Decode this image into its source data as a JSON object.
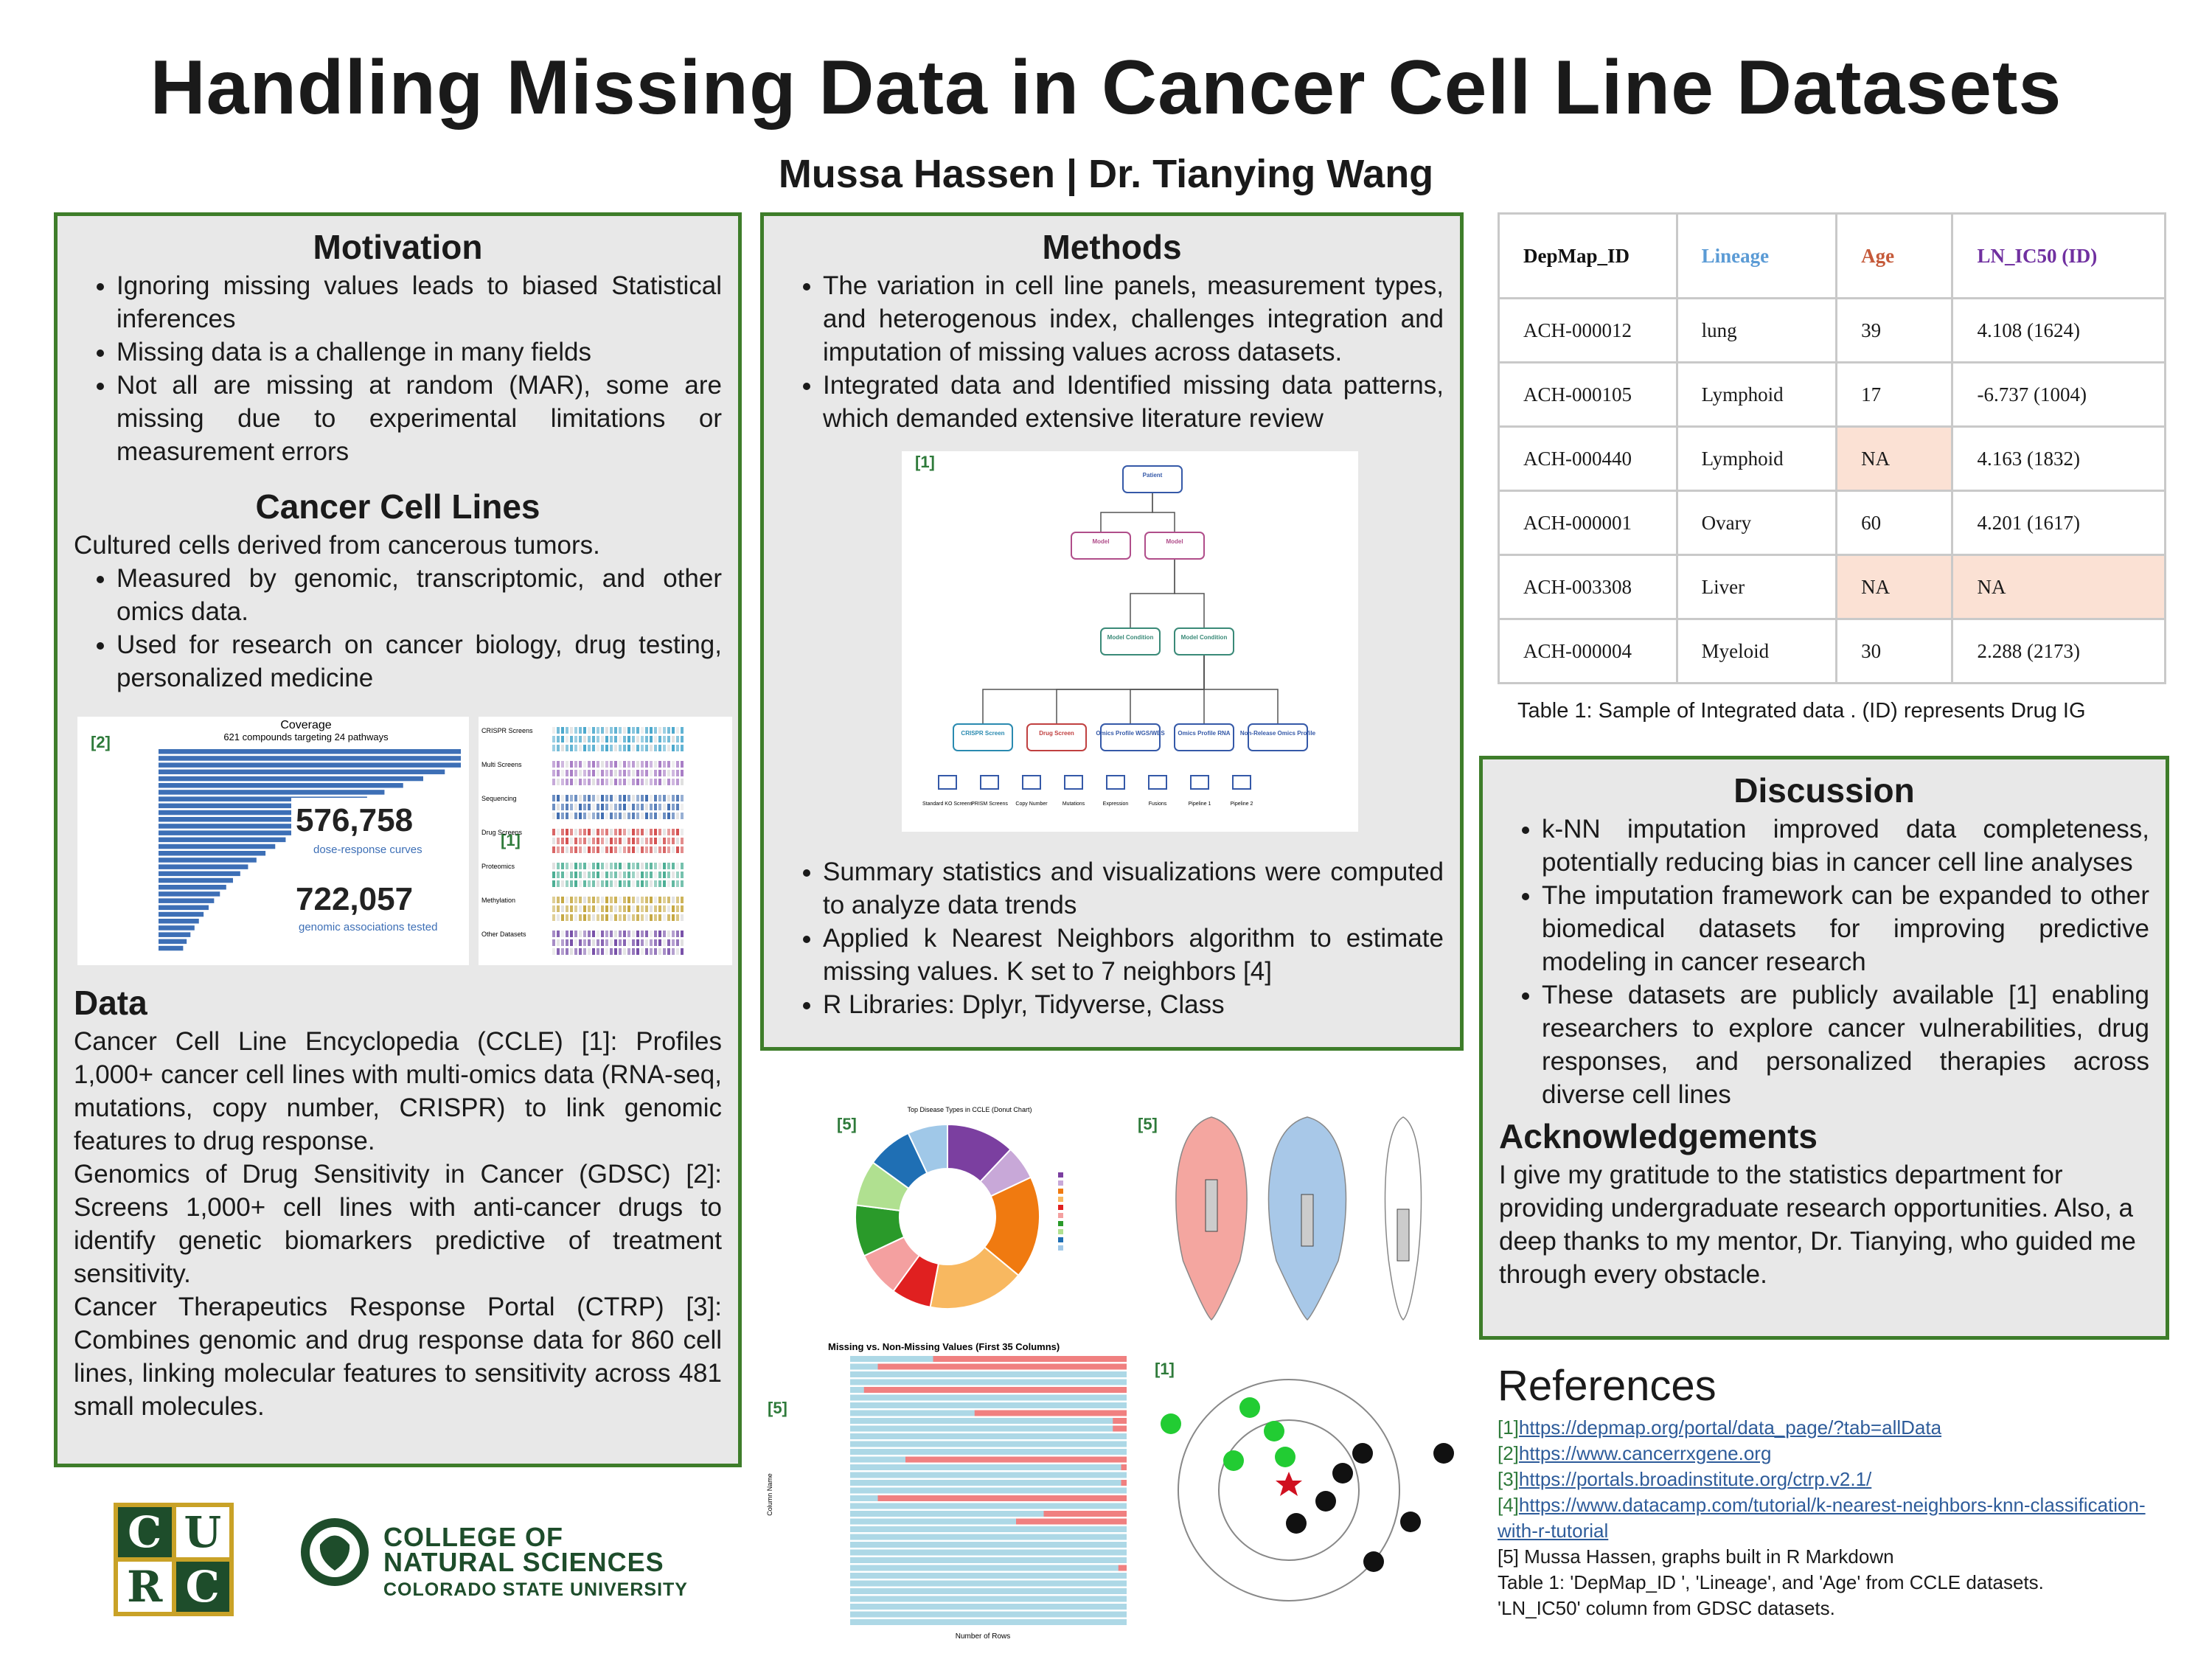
{
  "header": {
    "title": "Handling Missing Data in Cancer Cell Line Datasets",
    "authors": "Mussa Hassen | Dr. Tianying Wang"
  },
  "motivation": {
    "heading": "Motivation",
    "bullets": [
      "Ignoring missing values leads to biased Statistical inferences",
      "Missing data is a challenge in many fields",
      "Not all are missing at random (MAR), some are missing due to experimental limitations or measurement errors"
    ]
  },
  "cancer_cell_lines": {
    "heading": "Cancer Cell Lines",
    "intro": "Cultured cells derived from cancerous tumors.",
    "bullets": [
      "Measured by genomic, transcriptomic,  and other omics data.",
      "Used for research on cancer biology, drug testing, personalized medicine"
    ]
  },
  "coverage_figure": {
    "ref": "[2]",
    "title": "Coverage",
    "subtitle": "621 compounds targeting 24 pathways",
    "stat1": "576,758",
    "stat1_label": "dose-response curves",
    "stat2": "722,057",
    "stat2_label": "genomic associations tested"
  },
  "datasets_figure": {
    "ref": "[1]",
    "rows": [
      "CRISPR Screens",
      "Multi Screens",
      "Sequencing",
      "Drug Screens",
      "Proteomics",
      "Methylation",
      "Other Datasets"
    ]
  },
  "data": {
    "heading": "Data",
    "paragraphs": [
      "Cancer Cell Line Encyclopedia (CCLE) [1]: Profiles 1,000+ cancer cell lines with multi-omics data (RNA-seq, mutations, copy number, CRISPR) to link genomic features to drug response.",
      "Genomics of Drug Sensitivity in Cancer (GDSC) [2]: Screens 1,000+ cell lines with anti-cancer drugs to identify genetic biomarkers predictive of treatment sensitivity.",
      "Cancer Therapeutics Response Portal (CTRP) [3]: Combines genomic and drug response data for 860 cell lines, linking molecular features to sensitivity across 481 small molecules."
    ]
  },
  "methods": {
    "heading": "Methods",
    "bullets_top": [
      "The variation in cell line panels, measurement types, and heterogenous index, challenges integration and imputation of missing values across datasets.",
      "Integrated data and Identified missing data patterns, which demanded extensive literature  review"
    ],
    "bullets_bottom": [
      "Summary statistics and visualizations were computed to analyze data trends",
      "Applied k Nearest Neighbors algorithm to estimate missing values. K set to 7 neighbors [4]",
      "R Libraries: Dplyr, Tidyverse, Class"
    ]
  },
  "tree_figure": {
    "ref": "[1]",
    "nodes": [
      "Patient",
      "Model",
      "Model",
      "Model Condition",
      "Model Condition",
      "CRISPR Screen",
      "Drug Screen",
      "Omics Profile WGS/WES",
      "Omics Profile RNA",
      "Non-Release Omics Profile"
    ],
    "leaves": [
      "Standard KO Screens",
      "PRISM Screens",
      "Copy Number",
      "Mutations",
      "Expression",
      "Fusions",
      "Pipeline 1",
      "Pipeline 2"
    ]
  },
  "donut_figure": {
    "ref": "[5]",
    "title": "Top Disease Types in CCLE (Donut Chart)"
  },
  "violin_figure": {
    "ref": "[5]"
  },
  "missing_figure": {
    "ref": "[5]",
    "title": "Missing vs. Non-Missing Values (First 35 Columns)",
    "x_label": "Number of Rows",
    "y_label": "Column Name"
  },
  "knn_figure": {
    "ref": "[1]"
  },
  "table": {
    "header": [
      "DepMap_ID",
      "Lineage",
      "Age",
      "LN_IC50 (ID)"
    ],
    "rows": [
      [
        "ACH-000012",
        "lung",
        "39",
        "4.108 (1624)"
      ],
      [
        "ACH-000105",
        "Lymphoid",
        "17",
        "-6.737 (1004)"
      ],
      [
        "ACH-000440",
        "Lymphoid",
        "NA",
        "4.163 (1832)"
      ],
      [
        "ACH-000001",
        "Ovary",
        "60",
        "4.201 (1617)"
      ],
      [
        "ACH-003308",
        "Liver",
        "NA",
        "NA"
      ],
      [
        "ACH-000004",
        "Myeloid",
        "30",
        "2.288 (2173)"
      ]
    ],
    "caption": "Table 1: Sample of Integrated data . (ID) represents Drug IG"
  },
  "discussion": {
    "heading": "Discussion",
    "bullets": [
      "k-NN imputation improved data completeness, potentially reducing bias in cancer cell line analyses",
      "The imputation framework can be expanded to other biomedical datasets for improving predictive modeling in cancer research",
      "These datasets are publicly available [1] enabling researchers to explore cancer vulnerabilities, drug responses, and personalized therapies across diverse cell lines"
    ]
  },
  "acknowledgements": {
    "heading": "Acknowledgements",
    "text": "I give my gratitude to the statistics department for providing undergraduate research opportunities. Also, a deep thanks to my mentor, Dr. Tianying, who guided me through every obstacle."
  },
  "references": {
    "heading": "References",
    "items": [
      {
        "tag": "[1]",
        "url": "https://depmap.org/portal/data_page/?tab=allData"
      },
      {
        "tag": "[2]",
        "url": "https://www.cancerrxgene.org"
      },
      {
        "tag": "[3]",
        "url": "https://portals.broadinstitute.org/ctrp.v2.1/"
      },
      {
        "tag": "[4]",
        "url": "https://www.datacamp.com/tutorial/k-nearest-neighbors-knn-classification-with-r-tutorial"
      }
    ],
    "notes": [
      "[5] Mussa Hassen, graphs built in R Markdown",
      "Table 1:  'DepMap_ID ', 'Lineage', and 'Age' from CCLE datasets.",
      "'LN_IC50' column from GDSC datasets."
    ]
  },
  "logos": {
    "curc": [
      "C",
      "U",
      "R",
      "C"
    ],
    "college": [
      "COLLEGE OF",
      "NATURAL SCIENCES",
      "COLORADO STATE UNIVERSITY"
    ]
  }
}
